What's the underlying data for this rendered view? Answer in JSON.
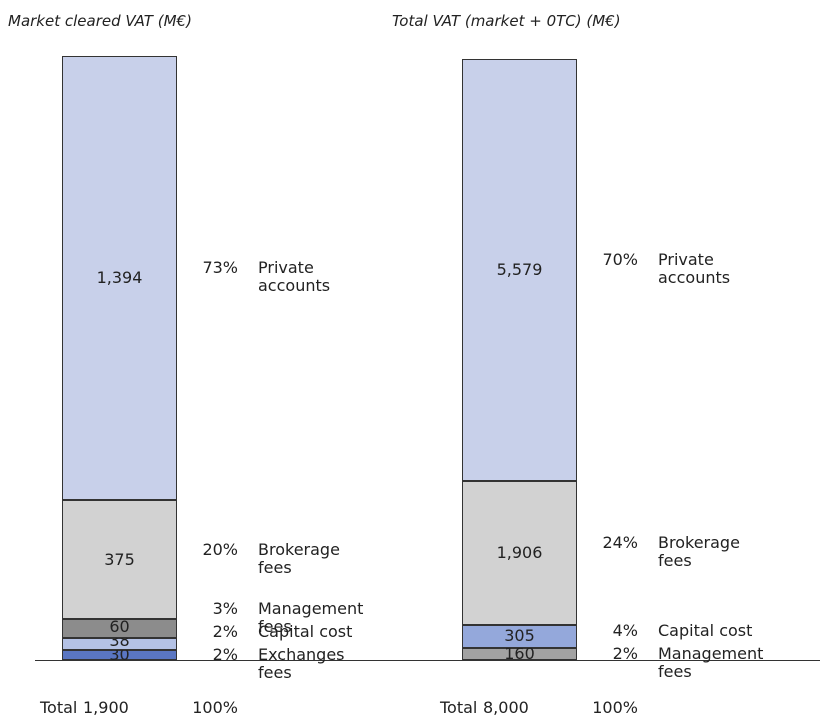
{
  "chart_data": [
    {
      "type": "stacked_bar",
      "title": "Market cleared VAT (M€)",
      "ylim": [
        0,
        1900
      ],
      "total_label": "Total",
      "total": {
        "value": 1900,
        "label": "1,900"
      },
      "total_share": {
        "value": 100,
        "label": "100%"
      },
      "series": [
        {
          "name": "Exchanges fees",
          "color": "#5a76c2",
          "values": [
            30
          ],
          "share": {
            "value": 2,
            "label": "2%"
          }
        },
        {
          "name": "Capital cost",
          "color": "#b4c2e6",
          "values": [
            38
          ],
          "share": {
            "value": 2,
            "label": "2%"
          }
        },
        {
          "name": "Management fees",
          "color": "#8c8c8c",
          "values": [
            60
          ],
          "share": {
            "value": 3,
            "label": "3%"
          }
        },
        {
          "name": "Brokerage fees",
          "color": "#d2d2d2",
          "values": [
            375
          ],
          "share": {
            "value": 20,
            "label": "20%"
          }
        },
        {
          "name": "Private accounts",
          "color": "#c8d0ea",
          "values": [
            1394
          ],
          "value_labels": [
            "1,394"
          ],
          "share": {
            "value": 73,
            "label": "73%"
          }
        }
      ]
    },
    {
      "type": "stacked_bar",
      "title": "Total VAT (market + 0TC) (M€)",
      "ylim": [
        0,
        8000
      ],
      "total_label": "Total",
      "total": {
        "value": 8000,
        "label": "8,000"
      },
      "total_share": {
        "value": 100,
        "label": "100%"
      },
      "series": [
        {
          "name": "Management fees",
          "color": "#a2a2a2",
          "values": [
            160
          ],
          "share": {
            "value": 2,
            "label": "2%"
          }
        },
        {
          "name": "Capital cost",
          "color": "#94a8db",
          "values": [
            305
          ],
          "share": {
            "value": 4,
            "label": "4%"
          }
        },
        {
          "name": "Brokerage fees",
          "color": "#d2d2d2",
          "values": [
            1906
          ],
          "value_labels": [
            "1,906"
          ],
          "share": {
            "value": 24,
            "label": "24%"
          }
        },
        {
          "name": "Private accounts",
          "color": "#c8d0ea",
          "values": [
            5579
          ],
          "value_labels": [
            "5,579"
          ],
          "share": {
            "value": 70,
            "label": "70%"
          }
        }
      ]
    }
  ]
}
